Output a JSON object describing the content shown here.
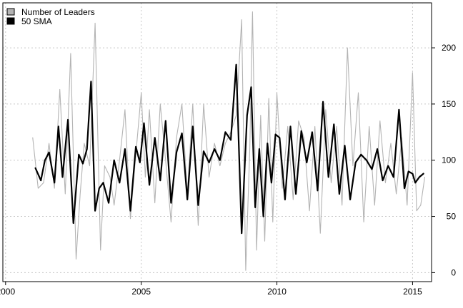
{
  "chart_data": {
    "type": "line",
    "title": "",
    "xlabel": "",
    "ylabel": "",
    "xlim": [
      1999.9,
      2015.7
    ],
    "ylim": [
      -8,
      240
    ],
    "x_ticks": [
      2000,
      2005,
      2010,
      2015
    ],
    "x_tick_labels": [
      "2000",
      "2005",
      "2010",
      "2015"
    ],
    "y_ticks": [
      0,
      50,
      100,
      150,
      200
    ],
    "y_tick_labels": [
      "0",
      "50",
      "100",
      "150",
      "200"
    ],
    "y_axis_side": "right",
    "grid": true,
    "legend_position": "top-left",
    "series": [
      {
        "name": "Number of Leaders",
        "color": "#b3b3b3",
        "x": [
          2001.0,
          2001.2,
          2001.4,
          2001.6,
          2001.8,
          2002.0,
          2002.2,
          2002.4,
          2002.6,
          2002.75,
          2002.9,
          2003.1,
          2003.3,
          2003.5,
          2003.65,
          2003.85,
          2004.0,
          2004.2,
          2004.4,
          2004.6,
          2004.8,
          2005.0,
          2005.15,
          2005.3,
          2005.5,
          2005.7,
          2005.9,
          2006.1,
          2006.3,
          2006.5,
          2006.7,
          2006.9,
          2007.1,
          2007.3,
          2007.5,
          2007.7,
          2007.9,
          2008.1,
          2008.3,
          2008.5,
          2008.7,
          2008.85,
          2009.0,
          2009.1,
          2009.25,
          2009.4,
          2009.55,
          2009.7,
          2009.85,
          2010.0,
          2010.2,
          2010.4,
          2010.6,
          2010.8,
          2011.0,
          2011.2,
          2011.4,
          2011.6,
          2011.8,
          2012.0,
          2012.2,
          2012.4,
          2012.6,
          2012.8,
          2013.0,
          2013.2,
          2013.4,
          2013.6,
          2013.8,
          2014.0,
          2014.2,
          2014.4,
          2014.6,
          2014.8,
          2015.0,
          2015.15,
          2015.3,
          2015.45
        ],
        "values": [
          120,
          75,
          80,
          115,
          75,
          163,
          70,
          195,
          12,
          70,
          115,
          95,
          222,
          20,
          95,
          85,
          60,
          100,
          145,
          48,
          105,
          160,
          85,
          145,
          62,
          150,
          100,
          45,
          120,
          150,
          70,
          150,
          42,
          150,
          85,
          115,
          95,
          115,
          125,
          140,
          225,
          2,
          110,
          232,
          20,
          140,
          28,
          155,
          45,
          160,
          75,
          130,
          65,
          135,
          120,
          55,
          130,
          35,
          145,
          80,
          130,
          60,
          200,
          95,
          160,
          45,
          130,
          60,
          135,
          80,
          115,
          70,
          120,
          60,
          178,
          55,
          60,
          85
        ]
      },
      {
        "name": "50 SMA",
        "color": "#000000",
        "x": [
          2001.1,
          2001.3,
          2001.45,
          2001.6,
          2001.8,
          2001.95,
          2002.1,
          2002.3,
          2002.5,
          2002.7,
          2002.85,
          2003.0,
          2003.15,
          2003.3,
          2003.45,
          2003.6,
          2003.8,
          2004.0,
          2004.2,
          2004.4,
          2004.6,
          2004.8,
          2004.95,
          2005.1,
          2005.3,
          2005.5,
          2005.7,
          2005.9,
          2006.1,
          2006.3,
          2006.5,
          2006.7,
          2006.9,
          2007.1,
          2007.3,
          2007.5,
          2007.7,
          2007.9,
          2008.1,
          2008.3,
          2008.5,
          2008.7,
          2008.9,
          2009.05,
          2009.2,
          2009.35,
          2009.5,
          2009.65,
          2009.8,
          2009.95,
          2010.1,
          2010.3,
          2010.5,
          2010.7,
          2010.9,
          2011.1,
          2011.3,
          2011.5,
          2011.7,
          2011.9,
          2012.1,
          2012.3,
          2012.5,
          2012.7,
          2012.9,
          2013.1,
          2013.3,
          2013.5,
          2013.7,
          2013.9,
          2014.1,
          2014.3,
          2014.5,
          2014.7,
          2014.85,
          2015.0,
          2015.1,
          2015.25,
          2015.4
        ],
        "values": [
          93,
          82,
          100,
          107,
          80,
          130,
          85,
          136,
          44,
          105,
          97,
          110,
          170,
          55,
          75,
          80,
          62,
          100,
          80,
          110,
          55,
          112,
          98,
          133,
          78,
          120,
          82,
          135,
          62,
          107,
          124,
          65,
          130,
          60,
          108,
          98,
          110,
          100,
          125,
          118,
          185,
          35,
          140,
          165,
          58,
          110,
          50,
          115,
          80,
          123,
          120,
          65,
          130,
          70,
          126,
          98,
          125,
          73,
          152,
          85,
          132,
          70,
          113,
          65,
          98,
          105,
          100,
          92,
          110,
          82,
          95,
          85,
          145,
          75,
          90,
          88,
          80,
          85,
          88
        ]
      }
    ]
  }
}
